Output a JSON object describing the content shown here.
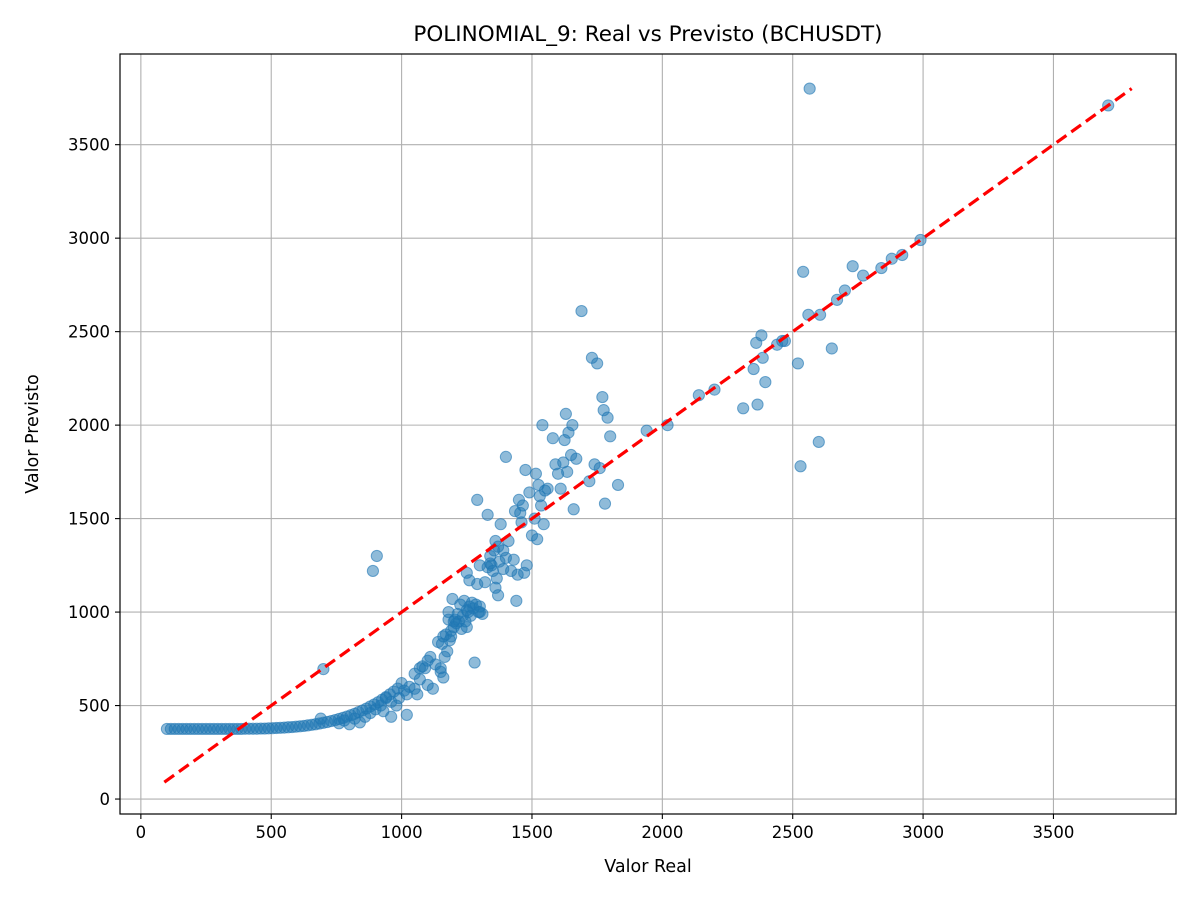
{
  "chart_data": {
    "type": "scatter",
    "title": "POLINOMIAL_9: Real vs Previsto (BCHUSDT)",
    "xlabel": "Valor Real",
    "ylabel": "Valor Previsto",
    "xlim": [
      -80,
      3970
    ],
    "ylim": [
      -80,
      3985
    ],
    "xticks": [
      0,
      500,
      1000,
      1500,
      2000,
      2500,
      3000,
      3500
    ],
    "yticks": [
      0,
      500,
      1000,
      1500,
      2000,
      2500,
      3000,
      3500
    ],
    "grid": true,
    "reference_line": {
      "x": [
        90,
        3800
      ],
      "y": [
        90,
        3800
      ],
      "color": "#ff0000",
      "style": "dashed"
    },
    "point_color": "#1f77b4",
    "points": [
      [
        100,
        375
      ],
      [
        115,
        375
      ],
      [
        130,
        375
      ],
      [
        145,
        375
      ],
      [
        160,
        375
      ],
      [
        175,
        375
      ],
      [
        190,
        375
      ],
      [
        205,
        375
      ],
      [
        220,
        375
      ],
      [
        235,
        375
      ],
      [
        250,
        375
      ],
      [
        265,
        375
      ],
      [
        280,
        375
      ],
      [
        295,
        375
      ],
      [
        310,
        375
      ],
      [
        325,
        375
      ],
      [
        340,
        375
      ],
      [
        355,
        375
      ],
      [
        370,
        375
      ],
      [
        385,
        375
      ],
      [
        400,
        376
      ],
      [
        415,
        376
      ],
      [
        430,
        376
      ],
      [
        445,
        376
      ],
      [
        460,
        377
      ],
      [
        475,
        377
      ],
      [
        490,
        378
      ],
      [
        505,
        379
      ],
      [
        520,
        380
      ],
      [
        535,
        381
      ],
      [
        550,
        382
      ],
      [
        565,
        384
      ],
      [
        580,
        385
      ],
      [
        595,
        387
      ],
      [
        610,
        389
      ],
      [
        625,
        391
      ],
      [
        640,
        394
      ],
      [
        655,
        397
      ],
      [
        670,
        400
      ],
      [
        685,
        404
      ],
      [
        700,
        408
      ],
      [
        715,
        412
      ],
      [
        730,
        417
      ],
      [
        745,
        422
      ],
      [
        760,
        428
      ],
      [
        775,
        434
      ],
      [
        790,
        441
      ],
      [
        805,
        448
      ],
      [
        820,
        456
      ],
      [
        835,
        465
      ],
      [
        850,
        474
      ],
      [
        865,
        484
      ],
      [
        880,
        495
      ],
      [
        895,
        506
      ],
      [
        910,
        518
      ],
      [
        925,
        531
      ],
      [
        940,
        545
      ],
      [
        955,
        560
      ],
      [
        970,
        575
      ],
      [
        985,
        591
      ],
      [
        700,
        695
      ],
      [
        690,
        430
      ],
      [
        760,
        405
      ],
      [
        780,
        420
      ],
      [
        800,
        400
      ],
      [
        820,
        430
      ],
      [
        840,
        410
      ],
      [
        860,
        440
      ],
      [
        880,
        460
      ],
      [
        900,
        480
      ],
      [
        920,
        500
      ],
      [
        940,
        540
      ],
      [
        960,
        440
      ],
      [
        980,
        500
      ],
      [
        1000,
        620
      ],
      [
        1010,
        580
      ],
      [
        1020,
        450
      ],
      [
        1030,
        600
      ],
      [
        1050,
        670
      ],
      [
        1060,
        560
      ],
      [
        1070,
        640
      ],
      [
        1080,
        710
      ],
      [
        1090,
        700
      ],
      [
        1100,
        740
      ],
      [
        1110,
        760
      ],
      [
        1120,
        590
      ],
      [
        1130,
        720
      ],
      [
        1140,
        840
      ],
      [
        1150,
        680
      ],
      [
        1155,
        830
      ],
      [
        1160,
        650
      ],
      [
        1165,
        760
      ],
      [
        1170,
        880
      ],
      [
        1175,
        790
      ],
      [
        1180,
        960
      ],
      [
        1185,
        850
      ],
      [
        1190,
        900
      ],
      [
        1195,
        1070
      ],
      [
        1200,
        920
      ],
      [
        1205,
        960
      ],
      [
        1210,
        940
      ],
      [
        1215,
        990
      ],
      [
        1220,
        950
      ],
      [
        1225,
        1040
      ],
      [
        1230,
        910
      ],
      [
        1235,
        980
      ],
      [
        1240,
        1060
      ],
      [
        1245,
        950
      ],
      [
        1250,
        920
      ],
      [
        1255,
        1000
      ],
      [
        1260,
        1030
      ],
      [
        1265,
        980
      ],
      [
        1270,
        1050
      ],
      [
        1275,
        1020
      ],
      [
        1280,
        730
      ],
      [
        1285,
        1040
      ],
      [
        1290,
        1150
      ],
      [
        1295,
        1000
      ],
      [
        1300,
        1030
      ],
      [
        1310,
        990
      ],
      [
        1320,
        1160
      ],
      [
        1330,
        1240
      ],
      [
        1340,
        1300
      ],
      [
        1345,
        1250
      ],
      [
        1350,
        1220
      ],
      [
        1355,
        1330
      ],
      [
        1360,
        1380
      ],
      [
        1365,
        1180
      ],
      [
        1370,
        1350
      ],
      [
        1375,
        1270
      ],
      [
        1380,
        1470
      ],
      [
        1390,
        1230
      ],
      [
        1400,
        1290
      ],
      [
        1410,
        1380
      ],
      [
        1420,
        1220
      ],
      [
        1430,
        1280
      ],
      [
        1435,
        1540
      ],
      [
        1440,
        1060
      ],
      [
        1445,
        1200
      ],
      [
        1450,
        1600
      ],
      [
        1455,
        1530
      ],
      [
        1460,
        1480
      ],
      [
        1465,
        1570
      ],
      [
        1470,
        1210
      ],
      [
        1475,
        1760
      ],
      [
        1480,
        1250
      ],
      [
        1490,
        1640
      ],
      [
        1500,
        1410
      ],
      [
        1510,
        1500
      ],
      [
        1515,
        1740
      ],
      [
        1520,
        1390
      ],
      [
        1525,
        1680
      ],
      [
        1530,
        1620
      ],
      [
        1535,
        1570
      ],
      [
        1540,
        2000
      ],
      [
        1545,
        1470
      ],
      [
        1550,
        1650
      ],
      [
        1560,
        1660
      ],
      [
        1580,
        1930
      ],
      [
        1590,
        1790
      ],
      [
        1600,
        1740
      ],
      [
        1610,
        1660
      ],
      [
        1620,
        1800
      ],
      [
        1625,
        1920
      ],
      [
        1630,
        2060
      ],
      [
        1635,
        1750
      ],
      [
        1640,
        1960
      ],
      [
        1650,
        1840
      ],
      [
        1655,
        2000
      ],
      [
        1660,
        1550
      ],
      [
        1670,
        1820
      ],
      [
        1690,
        2610
      ],
      [
        1720,
        1700
      ],
      [
        1730,
        2360
      ],
      [
        1740,
        1790
      ],
      [
        1750,
        2330
      ],
      [
        1760,
        1770
      ],
      [
        1770,
        2150
      ],
      [
        1775,
        2080
      ],
      [
        1780,
        1580
      ],
      [
        1790,
        2040
      ],
      [
        1800,
        1940
      ],
      [
        1830,
        1680
      ],
      [
        1940,
        1970
      ],
      [
        2020,
        2000
      ],
      [
        2140,
        2160
      ],
      [
        2200,
        2190
      ],
      [
        2310,
        2090
      ],
      [
        2350,
        2300
      ],
      [
        2360,
        2440
      ],
      [
        2365,
        2110
      ],
      [
        2380,
        2480
      ],
      [
        2385,
        2360
      ],
      [
        2395,
        2230
      ],
      [
        2440,
        2430
      ],
      [
        2460,
        2450
      ],
      [
        2470,
        2450
      ],
      [
        2520,
        2330
      ],
      [
        2530,
        1780
      ],
      [
        2540,
        2820
      ],
      [
        2560,
        2590
      ],
      [
        2565,
        3800
      ],
      [
        2600,
        1910
      ],
      [
        2605,
        2590
      ],
      [
        2650,
        2410
      ],
      [
        2670,
        2670
      ],
      [
        2700,
        2720
      ],
      [
        2730,
        2850
      ],
      [
        2770,
        2800
      ],
      [
        2840,
        2840
      ],
      [
        2880,
        2890
      ],
      [
        2920,
        2910
      ],
      [
        2990,
        2990
      ],
      [
        3710,
        3710
      ],
      [
        1020,
        560
      ],
      [
        1100,
        610
      ],
      [
        1150,
        700
      ],
      [
        1190,
        870
      ],
      [
        1250,
        1010
      ],
      [
        1300,
        1000
      ],
      [
        1340,
        1260
      ],
      [
        1360,
        1130
      ],
      [
        1370,
        1090
      ],
      [
        1390,
        1330
      ],
      [
        1400,
        1830
      ],
      [
        1290,
        1600
      ],
      [
        1330,
        1520
      ],
      [
        1250,
        1210
      ],
      [
        1260,
        1170
      ],
      [
        1300,
        1250
      ],
      [
        890,
        1220
      ],
      [
        905,
        1300
      ],
      [
        930,
        470
      ],
      [
        960,
        520
      ],
      [
        990,
        540
      ],
      [
        1050,
        590
      ],
      [
        1070,
        700
      ],
      [
        1160,
        870
      ],
      [
        1180,
        1000
      ],
      [
        1200,
        950
      ]
    ]
  }
}
